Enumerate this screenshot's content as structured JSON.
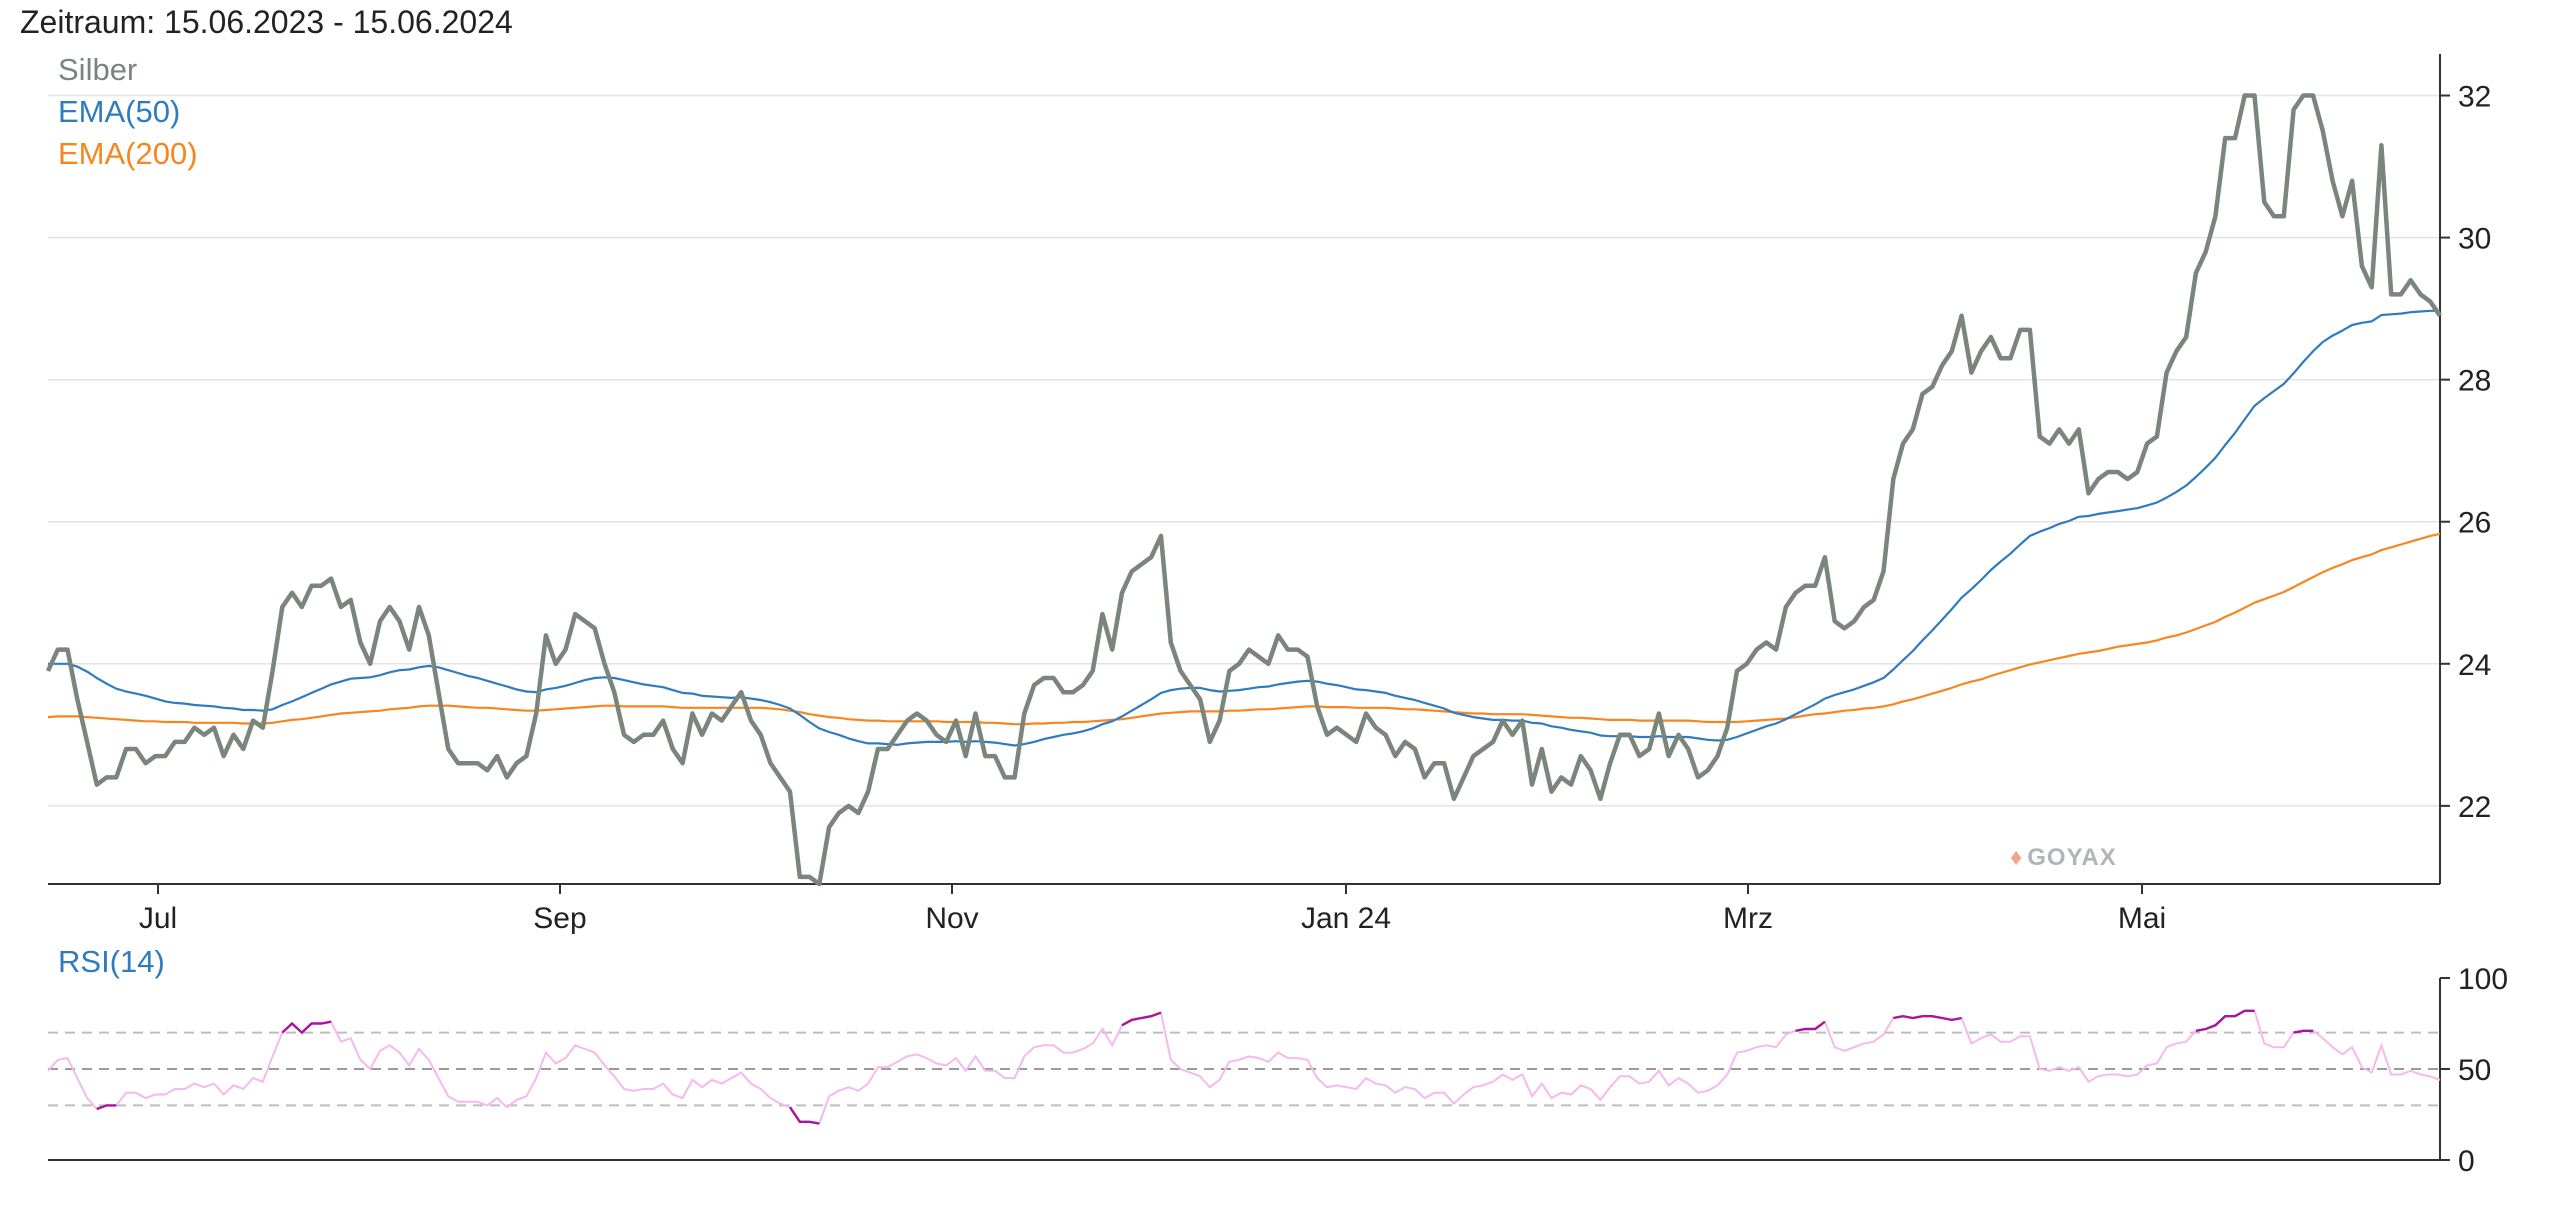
{
  "header": {
    "period": "Zeitraum: 15.06.2023 - 15.06.2024"
  },
  "watermark": {
    "text": "GOYAX",
    "icon": "bull-icon"
  },
  "chart_data": [
    {
      "type": "line",
      "title": "",
      "xlabel": "",
      "ylabel": "",
      "x_tick_labels": [
        "Jul",
        "Sep",
        "Nov",
        "Jan 24",
        "Mrz",
        "Mai"
      ],
      "y_tick_labels": [
        "22",
        "24",
        "26",
        "28",
        "30",
        "32"
      ],
      "ylim": [
        20.9,
        32.5
      ],
      "grid": true,
      "legend_position": "top-left",
      "series": [
        {
          "name": "Silber",
          "color": "#7a857c",
          "values": [
            23.9,
            24.2,
            24.2,
            23.5,
            22.9,
            22.3,
            22.4,
            22.4,
            22.8,
            22.8,
            22.6,
            22.7,
            22.7,
            22.9,
            22.9,
            23.1,
            23.0,
            23.1,
            22.7,
            23.0,
            22.8,
            23.2,
            23.1,
            23.9,
            24.8,
            25.0,
            24.8,
            25.1,
            25.1,
            25.2,
            24.8,
            24.9,
            24.3,
            24.0,
            24.6,
            24.8,
            24.6,
            24.2,
            24.8,
            24.4,
            23.6,
            22.8,
            22.6,
            22.6,
            22.6,
            22.5,
            22.7,
            22.4,
            22.6,
            22.7,
            23.3,
            24.4,
            24.0,
            24.2,
            24.7,
            24.6,
            24.5,
            24.0,
            23.6,
            23.0,
            22.9,
            23.0,
            23.0,
            23.2,
            22.8,
            22.6,
            23.3,
            23.0,
            23.3,
            23.2,
            23.4,
            23.6,
            23.2,
            23.0,
            22.6,
            22.4,
            22.2,
            21.0,
            21.0,
            20.9,
            21.7,
            21.9,
            22.0,
            21.9,
            22.2,
            22.8,
            22.8,
            23.0,
            23.2,
            23.3,
            23.2,
            23.0,
            22.9,
            23.2,
            22.7,
            23.3,
            22.7,
            22.7,
            22.4,
            22.4,
            23.3,
            23.7,
            23.8,
            23.8,
            23.6,
            23.6,
            23.7,
            23.9,
            24.7,
            24.2,
            25.0,
            25.3,
            25.4,
            25.5,
            25.8,
            24.3,
            23.9,
            23.7,
            23.5,
            22.9,
            23.2,
            23.9,
            24.0,
            24.2,
            24.1,
            24.0,
            24.4,
            24.2,
            24.2,
            24.1,
            23.4,
            23.0,
            23.1,
            23.0,
            22.9,
            23.3,
            23.1,
            23.0,
            22.7,
            22.9,
            22.8,
            22.4,
            22.6,
            22.6,
            22.1,
            22.4,
            22.7,
            22.8,
            22.9,
            23.2,
            23.0,
            23.2,
            22.3,
            22.8,
            22.2,
            22.4,
            22.3,
            22.7,
            22.5,
            22.1,
            22.6,
            23.0,
            23.0,
            22.7,
            22.8,
            23.3,
            22.7,
            23.0,
            22.8,
            22.4,
            22.5,
            22.7,
            23.1,
            23.9,
            24.0,
            24.2,
            24.3,
            24.2,
            24.8,
            25.0,
            25.1,
            25.1,
            25.5,
            24.6,
            24.5,
            24.6,
            24.8,
            24.9,
            25.3,
            26.6,
            27.1,
            27.3,
            27.8,
            27.9,
            28.2,
            28.4,
            28.9,
            28.1,
            28.4,
            28.6,
            28.3,
            28.3,
            28.7,
            28.7,
            27.2,
            27.1,
            27.3,
            27.1,
            27.3,
            26.4,
            26.6,
            26.7,
            26.7,
            26.6,
            26.7,
            27.1,
            27.2,
            28.1,
            28.4,
            28.6,
            29.5,
            29.8,
            30.3,
            31.4,
            31.4,
            32.0,
            32.0,
            30.5,
            30.3,
            30.3,
            31.8,
            32.0,
            32.0,
            31.5,
            30.8,
            30.3,
            30.8,
            29.6,
            29.3,
            31.3,
            29.2,
            29.2,
            29.4,
            29.2,
            29.1,
            28.9
          ]
        },
        {
          "name": "EMA(50)",
          "color": "#2f7bbf",
          "values": [
            24.0,
            24.0,
            24.0,
            23.96,
            23.89,
            23.8,
            23.72,
            23.65,
            23.61,
            23.58,
            23.55,
            23.51,
            23.47,
            23.45,
            23.44,
            23.42,
            23.41,
            23.4,
            23.38,
            23.37,
            23.35,
            23.35,
            23.34,
            23.36,
            23.42,
            23.47,
            23.53,
            23.59,
            23.65,
            23.71,
            23.75,
            23.79,
            23.8,
            23.81,
            23.84,
            23.88,
            23.91,
            23.92,
            23.95,
            23.97,
            23.95,
            23.91,
            23.87,
            23.83,
            23.8,
            23.76,
            23.72,
            23.68,
            23.64,
            23.61,
            23.6,
            23.64,
            23.66,
            23.69,
            23.73,
            23.77,
            23.8,
            23.81,
            23.8,
            23.77,
            23.74,
            23.71,
            23.69,
            23.67,
            23.63,
            23.59,
            23.58,
            23.55,
            23.54,
            23.53,
            23.52,
            23.53,
            23.51,
            23.49,
            23.46,
            23.42,
            23.37,
            23.28,
            23.18,
            23.09,
            23.04,
            23.0,
            22.95,
            22.91,
            22.88,
            22.88,
            22.87,
            22.86,
            22.88,
            22.89,
            22.9,
            22.9,
            22.9,
            22.91,
            22.9,
            22.91,
            22.9,
            22.89,
            22.87,
            22.85,
            22.87,
            22.9,
            22.94,
            22.97,
            23.0,
            23.02,
            23.05,
            23.09,
            23.15,
            23.19,
            23.26,
            23.34,
            23.42,
            23.5,
            23.59,
            23.63,
            23.65,
            23.66,
            23.66,
            23.63,
            23.61,
            23.62,
            23.63,
            23.65,
            23.67,
            23.68,
            23.71,
            23.73,
            23.75,
            23.76,
            23.75,
            23.72,
            23.7,
            23.67,
            23.64,
            23.63,
            23.61,
            23.59,
            23.55,
            23.52,
            23.49,
            23.45,
            23.41,
            23.37,
            23.31,
            23.28,
            23.25,
            23.23,
            23.21,
            23.21,
            23.2,
            23.2,
            23.17,
            23.16,
            23.12,
            23.1,
            23.07,
            23.05,
            23.03,
            22.99,
            22.98,
            22.98,
            22.98,
            22.97,
            22.97,
            22.98,
            22.97,
            22.97,
            22.97,
            22.95,
            22.93,
            22.92,
            22.93,
            22.97,
            23.02,
            23.07,
            23.12,
            23.16,
            23.22,
            23.29,
            23.36,
            23.43,
            23.51,
            23.56,
            23.6,
            23.64,
            23.69,
            23.74,
            23.8,
            23.92,
            24.05,
            24.18,
            24.33,
            24.47,
            24.62,
            24.77,
            24.93,
            25.05,
            25.18,
            25.32,
            25.44,
            25.55,
            25.68,
            25.8,
            25.86,
            25.91,
            25.97,
            26.01,
            26.07,
            26.08,
            26.11,
            26.13,
            26.15,
            26.17,
            26.19,
            26.23,
            26.27,
            26.34,
            26.42,
            26.51,
            26.63,
            26.76,
            26.9,
            27.08,
            27.25,
            27.44,
            27.63,
            27.74,
            27.84,
            27.94,
            28.09,
            28.25,
            28.4,
            28.53,
            28.62,
            28.69,
            28.77,
            28.8,
            28.82,
            28.91,
            28.92,
            28.93,
            28.95,
            28.96,
            28.97,
            28.97
          ]
        },
        {
          "name": "EMA(200)",
          "color": "#f7861e",
          "values": [
            23.25,
            23.26,
            23.26,
            23.26,
            23.25,
            23.24,
            23.23,
            23.22,
            23.21,
            23.2,
            23.19,
            23.19,
            23.18,
            23.18,
            23.18,
            23.17,
            23.17,
            23.17,
            23.17,
            23.17,
            23.16,
            23.16,
            23.16,
            23.17,
            23.19,
            23.21,
            23.22,
            23.24,
            23.26,
            23.28,
            23.3,
            23.31,
            23.32,
            23.33,
            23.34,
            23.36,
            23.37,
            23.38,
            23.4,
            23.41,
            23.41,
            23.41,
            23.4,
            23.39,
            23.38,
            23.38,
            23.37,
            23.36,
            23.35,
            23.34,
            23.34,
            23.35,
            23.36,
            23.37,
            23.38,
            23.39,
            23.4,
            23.41,
            23.41,
            23.4,
            23.4,
            23.4,
            23.4,
            23.4,
            23.39,
            23.38,
            23.38,
            23.38,
            23.38,
            23.38,
            23.38,
            23.38,
            23.38,
            23.38,
            23.37,
            23.36,
            23.34,
            23.32,
            23.29,
            23.27,
            23.25,
            23.24,
            23.22,
            23.21,
            23.2,
            23.2,
            23.19,
            23.19,
            23.19,
            23.19,
            23.19,
            23.19,
            23.18,
            23.18,
            23.18,
            23.18,
            23.17,
            23.17,
            23.16,
            23.15,
            23.15,
            23.16,
            23.16,
            23.17,
            23.17,
            23.18,
            23.18,
            23.19,
            23.2,
            23.21,
            23.22,
            23.24,
            23.26,
            23.28,
            23.3,
            23.31,
            23.32,
            23.33,
            23.33,
            23.33,
            23.33,
            23.34,
            23.34,
            23.35,
            23.36,
            23.36,
            23.37,
            23.38,
            23.39,
            23.4,
            23.4,
            23.39,
            23.39,
            23.39,
            23.38,
            23.38,
            23.38,
            23.38,
            23.37,
            23.36,
            23.36,
            23.35,
            23.34,
            23.33,
            23.32,
            23.31,
            23.3,
            23.3,
            23.29,
            23.29,
            23.29,
            23.29,
            23.28,
            23.27,
            23.26,
            23.25,
            23.24,
            23.24,
            23.23,
            23.22,
            23.21,
            23.21,
            23.21,
            23.2,
            23.2,
            23.2,
            23.2,
            23.2,
            23.2,
            23.19,
            23.18,
            23.18,
            23.18,
            23.18,
            23.19,
            23.2,
            23.21,
            23.22,
            23.23,
            23.25,
            23.27,
            23.29,
            23.3,
            23.32,
            23.34,
            23.35,
            23.37,
            23.38,
            23.4,
            23.43,
            23.47,
            23.5,
            23.54,
            23.58,
            23.62,
            23.66,
            23.71,
            23.75,
            23.78,
            23.83,
            23.87,
            23.91,
            23.95,
            23.99,
            24.02,
            24.05,
            24.08,
            24.11,
            24.14,
            24.16,
            24.18,
            24.21,
            24.24,
            24.26,
            24.28,
            24.3,
            24.33,
            24.37,
            24.4,
            24.44,
            24.49,
            24.54,
            24.59,
            24.66,
            24.72,
            24.79,
            24.86,
            24.91,
            24.96,
            25.01,
            25.08,
            25.15,
            25.22,
            25.29,
            25.35,
            25.4,
            25.46,
            25.5,
            25.54,
            25.6,
            25.64,
            25.68,
            25.72,
            25.76,
            25.8,
            25.83
          ]
        }
      ]
    },
    {
      "type": "line",
      "title": "",
      "x_tick_labels": [],
      "y_tick_labels": [
        "0",
        "50",
        "100"
      ],
      "ylim": [
        0,
        100
      ],
      "reference_lines": [
        30,
        50,
        70
      ],
      "legend_position": "top-left",
      "series": [
        {
          "name": "RSI(14)",
          "color": "#f6b8f0",
          "overbought_color": "#a8139f",
          "values": [
            49,
            55,
            56,
            45,
            34,
            28,
            30,
            30,
            37,
            37,
            34,
            36,
            36,
            39,
            39,
            42,
            40,
            42,
            36,
            41,
            39,
            45,
            43,
            57,
            70,
            75,
            70,
            75,
            75,
            76,
            65,
            67,
            55,
            50,
            60,
            63,
            59,
            52,
            61,
            55,
            45,
            35,
            32,
            32,
            32,
            30,
            34,
            29,
            33,
            35,
            45,
            59,
            53,
            56,
            63,
            61,
            59,
            52,
            46,
            39,
            38,
            39,
            39,
            42,
            36,
            34,
            44,
            40,
            44,
            42,
            45,
            48,
            42,
            39,
            34,
            31,
            29,
            21,
            21,
            20,
            35,
            38,
            40,
            38,
            42,
            51,
            51,
            54,
            57,
            58,
            56,
            53,
            52,
            56,
            49,
            57,
            49,
            49,
            45,
            45,
            57,
            62,
            63,
            63,
            59,
            59,
            61,
            64,
            72,
            63,
            74,
            77,
            78,
            79,
            81,
            55,
            50,
            48,
            46,
            40,
            44,
            54,
            55,
            57,
            56,
            54,
            59,
            56,
            56,
            55,
            45,
            40,
            41,
            40,
            39,
            45,
            42,
            41,
            37,
            40,
            39,
            34,
            37,
            37,
            31,
            36,
            40,
            41,
            43,
            47,
            44,
            47,
            35,
            42,
            34,
            37,
            36,
            41,
            39,
            33,
            40,
            46,
            46,
            42,
            43,
            49,
            41,
            45,
            42,
            37,
            38,
            41,
            47,
            59,
            60,
            62,
            63,
            62,
            69,
            71,
            72,
            72,
            76,
            62,
            60,
            62,
            64,
            65,
            69,
            78,
            79,
            78,
            79,
            79,
            78,
            77,
            78,
            64,
            67,
            69,
            65,
            65,
            68,
            68,
            50,
            49,
            51,
            49,
            51,
            43,
            46,
            47,
            47,
            46,
            47,
            52,
            53,
            62,
            64,
            65,
            71,
            72,
            74,
            79,
            79,
            82,
            82,
            64,
            62,
            62,
            70,
            71,
            71,
            67,
            62,
            58,
            62,
            51,
            48,
            63,
            47,
            47,
            49,
            47,
            46,
            44
          ]
        }
      ]
    }
  ]
}
